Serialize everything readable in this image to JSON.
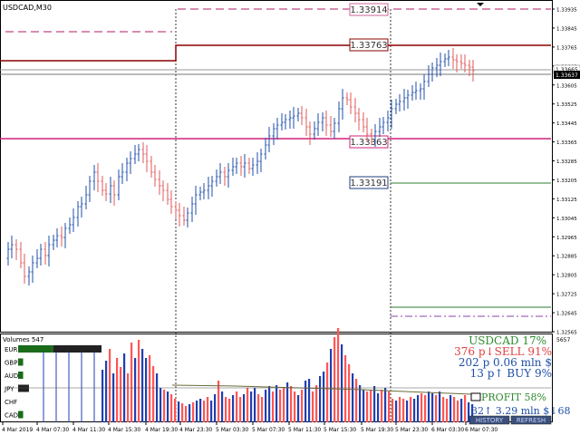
{
  "symbol_title": "USDCAD,M30",
  "volumes_title": "Volumes 547",
  "volumes_max": "5657",
  "y_ticks": [
    "1.33935",
    "1.33845",
    "1.33765",
    "1.33685",
    "1.33605",
    "1.33525",
    "1.33445",
    "1.33365",
    "1.33285",
    "1.33205",
    "1.33125",
    "1.33045",
    "1.32965",
    "1.32885",
    "1.32805",
    "1.32725",
    "1.32645",
    "1.32565"
  ],
  "bid_label": "1.33637",
  "ask_label": "1.33665",
  "levels": [
    {
      "text": "1.33914",
      "kind": "dash-pink"
    },
    {
      "text": "1.33763",
      "kind": "darkred"
    },
    {
      "text": "1.33363",
      "kind": "magenta"
    },
    {
      "text": "1.33191",
      "kind": "green"
    }
  ],
  "x_labels": [
    "4 Mar 2019",
    "4 Mar 07:30",
    "4 Mar 11:30",
    "4 Mar 15:30",
    "4 Mar 19:30",
    "4 Mar 23:30",
    "5 Mar 03:30",
    "5 Mar 07:30",
    "5 Mar 11:30",
    "5 Mar 15:30",
    "5 Mar 19:30",
    "5 Mar 23:30",
    "6 Mar 03:30",
    "6 Mar 07:30"
  ],
  "currencies": [
    {
      "name": "EUR",
      "strength": 0.42,
      "weakness": 0.58
    },
    {
      "name": "GBP",
      "strength": 0.06,
      "weakness": 0
    },
    {
      "name": "AUD",
      "strength": 0.06,
      "weakness": 0
    },
    {
      "name": "JPY",
      "strength": 0,
      "weakness": 0.13
    },
    {
      "name": "CHF",
      "strength": 0,
      "weakness": 0
    },
    {
      "name": "CAD",
      "strength": 0.06,
      "weakness": 0
    }
  ],
  "panel": {
    "line1": "USDCAD 17%",
    "line2": "376 p↓SELL 91%",
    "line3": "202 p   0.06 mln $",
    "line4": "13 p↑   BUY 9%",
    "profit": "PROFIT 58%",
    "line6": "32↑   3.29 mln $↓68",
    "history_btn": "HISTORY",
    "refresh_btn": "REFRESH"
  },
  "colors": {
    "bull": "#1f4fa8",
    "bear": "#e05a5a",
    "vol_blue": "#1f3fb0",
    "vol_red": "#ff5555",
    "green_text": "#2e8b2e",
    "red_text": "#e04040",
    "blue_text": "#1f4fa8"
  }
}
